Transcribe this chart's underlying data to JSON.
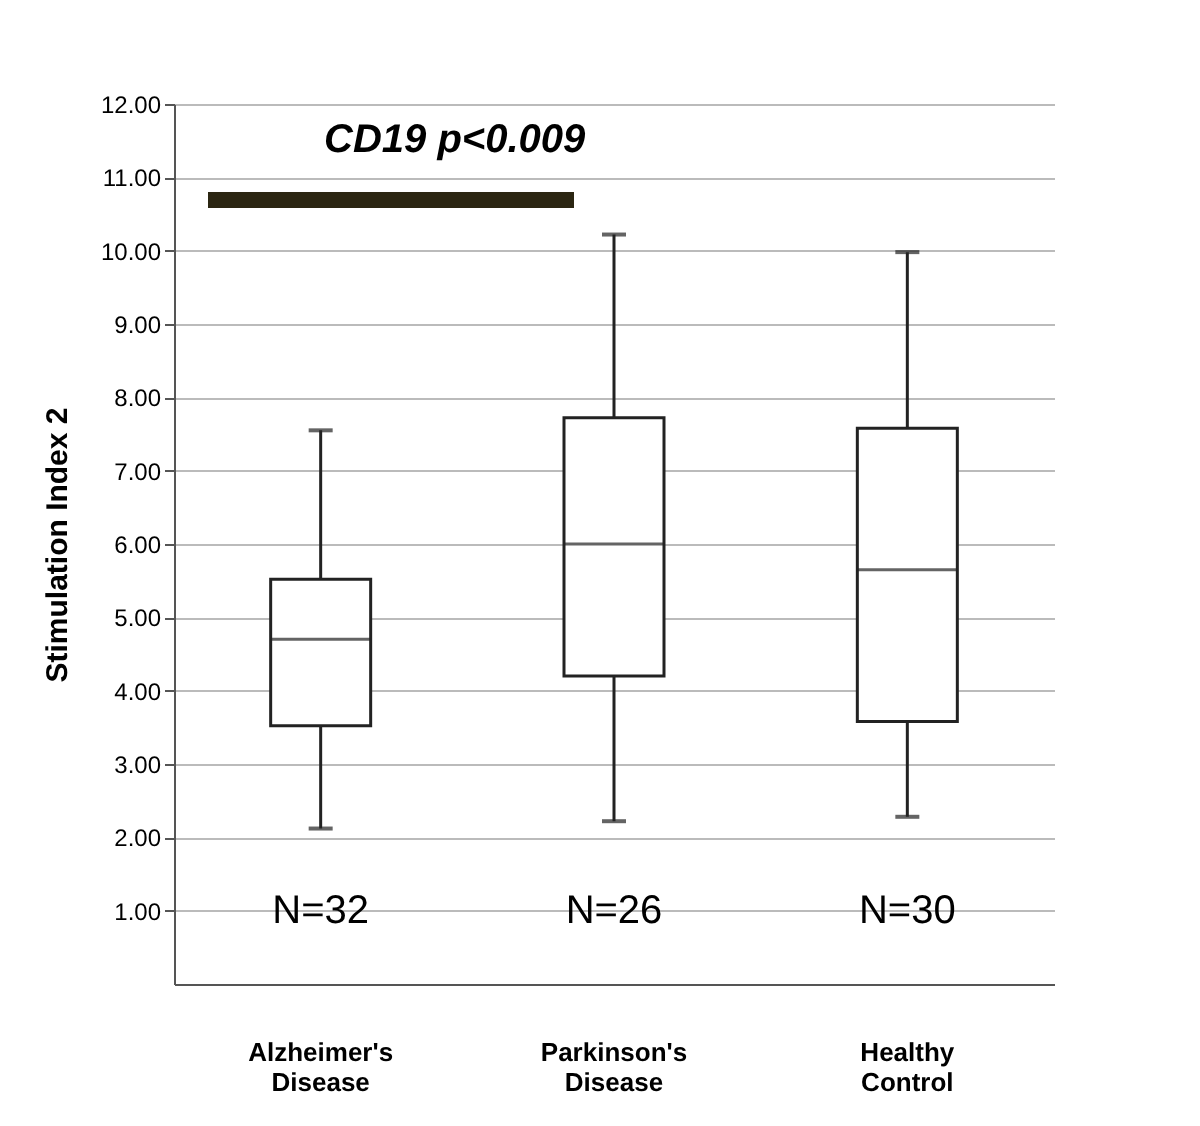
{
  "chart_data": {
    "type": "box",
    "ylabel": "Stimulation Index 2",
    "categories": [
      "Alzheimer's Disease",
      "Parkinson's Disease",
      "Healthy Control"
    ],
    "boxes": [
      {
        "low": 2.12,
        "q1": 3.52,
        "median": 4.7,
        "q3": 5.52,
        "high": 7.55
      },
      {
        "low": 2.22,
        "q1": 4.2,
        "median": 6.0,
        "q3": 7.72,
        "high": 10.22
      },
      {
        "low": 2.28,
        "q1": 3.58,
        "median": 5.65,
        "q3": 7.58,
        "high": 9.98
      }
    ],
    "ylim": [
      0,
      12
    ],
    "yticks": [
      {
        "value": 1,
        "label": "1.00"
      },
      {
        "value": 2,
        "label": "2.00"
      },
      {
        "value": 3,
        "label": "3.00"
      },
      {
        "value": 4,
        "label": "4.00"
      },
      {
        "value": 5,
        "label": "5.00"
      },
      {
        "value": 6,
        "label": "6.00"
      },
      {
        "value": 7,
        "label": "7.00"
      },
      {
        "value": 8,
        "label": "8.00"
      },
      {
        "value": 9,
        "label": "9.00"
      },
      {
        "value": 10,
        "label": "10.00"
      },
      {
        "value": 11,
        "label": "11.00"
      },
      {
        "value": 12,
        "label": "12.00"
      }
    ],
    "grid": "y",
    "annotations": [
      "CD19 p<0.009",
      "N=32",
      "N=26",
      "N=30"
    ]
  }
}
